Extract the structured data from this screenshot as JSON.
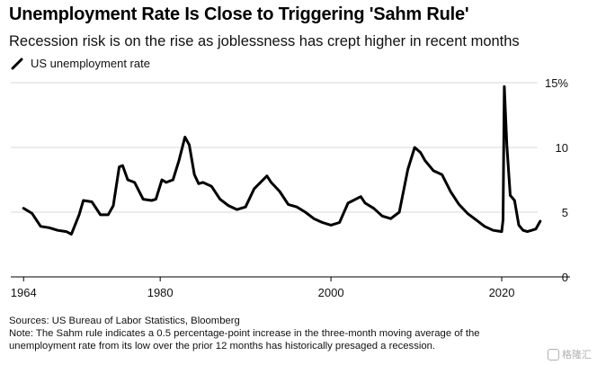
{
  "header": {
    "title": "Unemployment Rate Is Close to Triggering 'Sahm Rule'",
    "subtitle": "Recession risk is on the rise as joblessness has crept higher in recent months"
  },
  "legend": {
    "label": "US unemployment rate"
  },
  "notes": {
    "sources": "Sources: US Bureau of Labor Statistics, Bloomberg",
    "note_line1": "Note: The Sahm rule indicates a 0.5 percentage-point increase in the three-month moving average of the",
    "note_line2": "unemployment rate from its low over the prior 12 months has historically presaged a recession."
  },
  "watermark": {
    "text": "格隆汇"
  },
  "colors": {
    "line": "#000000",
    "grid": "#d9d9d9",
    "axis": "#000000",
    "background": "#ffffff"
  },
  "chart_data": {
    "type": "line",
    "title": "Unemployment Rate Is Close to Triggering 'Sahm Rule'",
    "xlabel": "",
    "ylabel": "",
    "xlim": [
      1962.5,
      2028
    ],
    "ylim": [
      0,
      15
    ],
    "x_ticks": [
      1964,
      1980,
      2000,
      2020
    ],
    "y_ticks": [
      0,
      5,
      10,
      15
    ],
    "y_tick_labels": [
      "0",
      "5",
      "10",
      "15%"
    ],
    "grid": true,
    "legend_position": "top-left",
    "series": [
      {
        "name": "US unemployment rate",
        "points": [
          [
            1964.0,
            5.3
          ],
          [
            1965.0,
            4.9
          ],
          [
            1966.0,
            3.9
          ],
          [
            1967.0,
            3.8
          ],
          [
            1968.0,
            3.6
          ],
          [
            1969.0,
            3.5
          ],
          [
            1969.6,
            3.3
          ],
          [
            1970.5,
            4.8
          ],
          [
            1971.0,
            5.9
          ],
          [
            1972.0,
            5.8
          ],
          [
            1973.0,
            4.8
          ],
          [
            1973.9,
            4.8
          ],
          [
            1974.5,
            5.5
          ],
          [
            1975.2,
            8.5
          ],
          [
            1975.6,
            8.6
          ],
          [
            1976.2,
            7.5
          ],
          [
            1977.0,
            7.3
          ],
          [
            1978.0,
            6.0
          ],
          [
            1979.0,
            5.9
          ],
          [
            1979.5,
            6.0
          ],
          [
            1980.2,
            7.5
          ],
          [
            1980.7,
            7.3
          ],
          [
            1981.5,
            7.5
          ],
          [
            1982.2,
            9.0
          ],
          [
            1982.9,
            10.8
          ],
          [
            1983.4,
            10.2
          ],
          [
            1984.0,
            7.9
          ],
          [
            1984.5,
            7.2
          ],
          [
            1985.0,
            7.3
          ],
          [
            1986.0,
            7.0
          ],
          [
            1987.0,
            6.0
          ],
          [
            1988.0,
            5.5
          ],
          [
            1989.0,
            5.2
          ],
          [
            1990.0,
            5.4
          ],
          [
            1991.0,
            6.8
          ],
          [
            1992.5,
            7.8
          ],
          [
            1993.0,
            7.3
          ],
          [
            1994.0,
            6.6
          ],
          [
            1995.0,
            5.6
          ],
          [
            1996.0,
            5.4
          ],
          [
            1997.0,
            5.0
          ],
          [
            1998.0,
            4.5
          ],
          [
            1999.0,
            4.2
          ],
          [
            2000.0,
            4.0
          ],
          [
            2001.0,
            4.2
          ],
          [
            2002.0,
            5.7
          ],
          [
            2003.5,
            6.2
          ],
          [
            2004.0,
            5.7
          ],
          [
            2005.0,
            5.3
          ],
          [
            2006.0,
            4.7
          ],
          [
            2007.0,
            4.5
          ],
          [
            2008.0,
            5.0
          ],
          [
            2009.0,
            8.3
          ],
          [
            2009.8,
            10.0
          ],
          [
            2010.5,
            9.6
          ],
          [
            2011.0,
            9.0
          ],
          [
            2012.0,
            8.2
          ],
          [
            2013.0,
            7.9
          ],
          [
            2014.0,
            6.6
          ],
          [
            2015.0,
            5.6
          ],
          [
            2016.0,
            4.9
          ],
          [
            2017.0,
            4.4
          ],
          [
            2018.0,
            3.9
          ],
          [
            2019.0,
            3.6
          ],
          [
            2020.0,
            3.5
          ],
          [
            2020.15,
            4.4
          ],
          [
            2020.3,
            14.7
          ],
          [
            2020.6,
            10.2
          ],
          [
            2021.0,
            6.3
          ],
          [
            2021.5,
            5.9
          ],
          [
            2022.0,
            4.0
          ],
          [
            2022.5,
            3.6
          ],
          [
            2023.0,
            3.5
          ],
          [
            2023.5,
            3.6
          ],
          [
            2024.0,
            3.7
          ],
          [
            2024.5,
            4.3
          ]
        ]
      }
    ]
  }
}
